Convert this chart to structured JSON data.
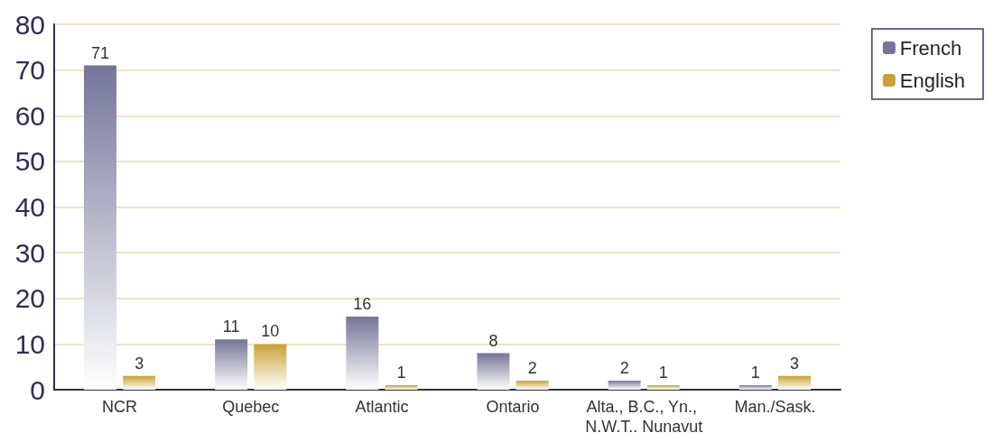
{
  "chart_data": {
    "type": "bar",
    "categories": [
      "NCR",
      "Quebec",
      "Atlantic",
      "Ontario",
      "Alta., B.C., Yn., N.W.T.. Nunavut",
      "Man./Sask."
    ],
    "series": [
      {
        "name": "French",
        "color": "#757599",
        "values": [
          71,
          11,
          16,
          8,
          2,
          1
        ]
      },
      {
        "name": "English",
        "color": "#c9a235",
        "values": [
          3,
          10,
          1,
          2,
          1,
          3
        ]
      }
    ],
    "ylim": [
      0,
      80
    ],
    "yticks": [
      0,
      10,
      20,
      30,
      40,
      50,
      60,
      70,
      80
    ],
    "grid": "y",
    "legend": "top right",
    "data_labels": true
  }
}
